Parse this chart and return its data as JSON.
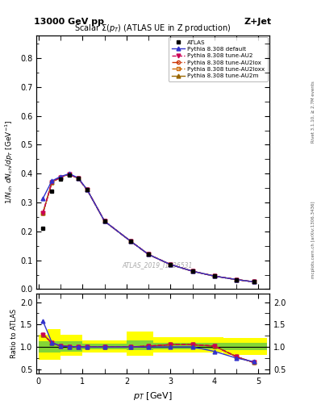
{
  "top_left_label": "13000 GeV pp",
  "top_right_label": "Z+Jet",
  "title_main": "Scalar Σ(p_{T}) (ATLAS UE in Z production)",
  "watermark": "ATLAS_2019_I1736531",
  "right_label1": "Rivet 3.1.10, ≥ 2.7M events",
  "right_label2": "mcplots.cern.ch [arXiv:1306.3436]",
  "x_pts": [
    0.1,
    0.3,
    0.5,
    0.7,
    0.9,
    1.1,
    1.5,
    2.1,
    2.5,
    3.0,
    3.5,
    4.0,
    4.5,
    4.9
  ],
  "y_atlas": [
    0.21,
    0.34,
    0.38,
    0.395,
    0.385,
    0.345,
    0.235,
    0.165,
    0.12,
    0.085,
    0.062,
    0.045,
    0.033,
    0.025
  ],
  "y_default": [
    0.315,
    0.375,
    0.39,
    0.4,
    0.385,
    0.345,
    0.235,
    0.165,
    0.12,
    0.085,
    0.062,
    0.045,
    0.033,
    0.025
  ],
  "y_au2": [
    0.265,
    0.37,
    0.388,
    0.398,
    0.383,
    0.345,
    0.235,
    0.165,
    0.12,
    0.085,
    0.062,
    0.045,
    0.033,
    0.025
  ],
  "y_au2lox": [
    0.265,
    0.37,
    0.388,
    0.398,
    0.383,
    0.345,
    0.235,
    0.165,
    0.12,
    0.085,
    0.062,
    0.045,
    0.033,
    0.025
  ],
  "y_au2loxx": [
    0.265,
    0.37,
    0.388,
    0.398,
    0.383,
    0.345,
    0.235,
    0.165,
    0.12,
    0.085,
    0.062,
    0.045,
    0.033,
    0.025
  ],
  "y_au2m": [
    0.265,
    0.37,
    0.388,
    0.398,
    0.383,
    0.345,
    0.235,
    0.165,
    0.12,
    0.085,
    0.062,
    0.045,
    0.033,
    0.025
  ],
  "ratio_default": [
    1.57,
    1.1,
    1.02,
    1.01,
    1.0,
    1.0,
    1.0,
    1.0,
    1.0,
    1.0,
    1.0,
    0.9,
    0.75,
    0.67
  ],
  "ratio_au2": [
    1.28,
    1.09,
    1.02,
    1.01,
    0.998,
    1.0,
    1.0,
    1.0,
    1.02,
    1.05,
    1.05,
    1.02,
    0.78,
    0.65
  ],
  "ratio_au2lox": [
    1.28,
    1.09,
    1.02,
    1.01,
    0.998,
    1.0,
    1.0,
    1.0,
    1.02,
    1.05,
    1.05,
    1.02,
    0.78,
    0.65
  ],
  "ratio_au2loxx": [
    1.28,
    1.09,
    1.02,
    1.01,
    0.998,
    1.0,
    1.0,
    1.0,
    1.02,
    1.05,
    1.05,
    1.02,
    0.78,
    0.65
  ],
  "ratio_au2m": [
    1.28,
    1.09,
    1.02,
    1.01,
    0.998,
    1.0,
    1.0,
    1.0,
    1.02,
    1.05,
    1.05,
    1.02,
    0.78,
    0.65
  ],
  "band_edges": [
    0.0,
    0.2,
    0.5,
    1.0,
    1.5,
    2.0,
    2.6,
    3.4,
    4.2,
    4.8,
    5.2
  ],
  "band_yellow_lo": [
    0.72,
    0.72,
    0.8,
    0.88,
    0.88,
    0.8,
    0.87,
    0.87,
    0.82,
    0.82,
    0.82
  ],
  "band_yellow_hi": [
    1.28,
    1.4,
    1.28,
    1.15,
    1.15,
    1.35,
    1.22,
    1.22,
    1.2,
    1.2,
    1.2
  ],
  "band_green_lo": [
    0.88,
    0.88,
    0.9,
    0.95,
    0.95,
    0.93,
    0.95,
    0.95,
    0.93,
    0.93,
    0.93
  ],
  "band_green_hi": [
    1.12,
    1.12,
    1.12,
    1.08,
    1.08,
    1.15,
    1.1,
    1.1,
    1.1,
    1.1,
    1.1
  ],
  "color_default": "#3333cc",
  "color_au2": "#cc0055",
  "color_au2lox": "#cc3300",
  "color_au2loxx": "#cc6600",
  "color_au2m": "#996600",
  "ylim_main": [
    0.0,
    0.88
  ],
  "yticks_main": [
    0.0,
    0.1,
    0.2,
    0.3,
    0.4,
    0.5,
    0.6,
    0.7,
    0.8
  ],
  "ylim_ratio": [
    0.4,
    2.2
  ],
  "yticks_ratio": [
    0.5,
    1.0,
    1.5,
    2.0
  ],
  "xlim": [
    -0.05,
    5.25
  ]
}
